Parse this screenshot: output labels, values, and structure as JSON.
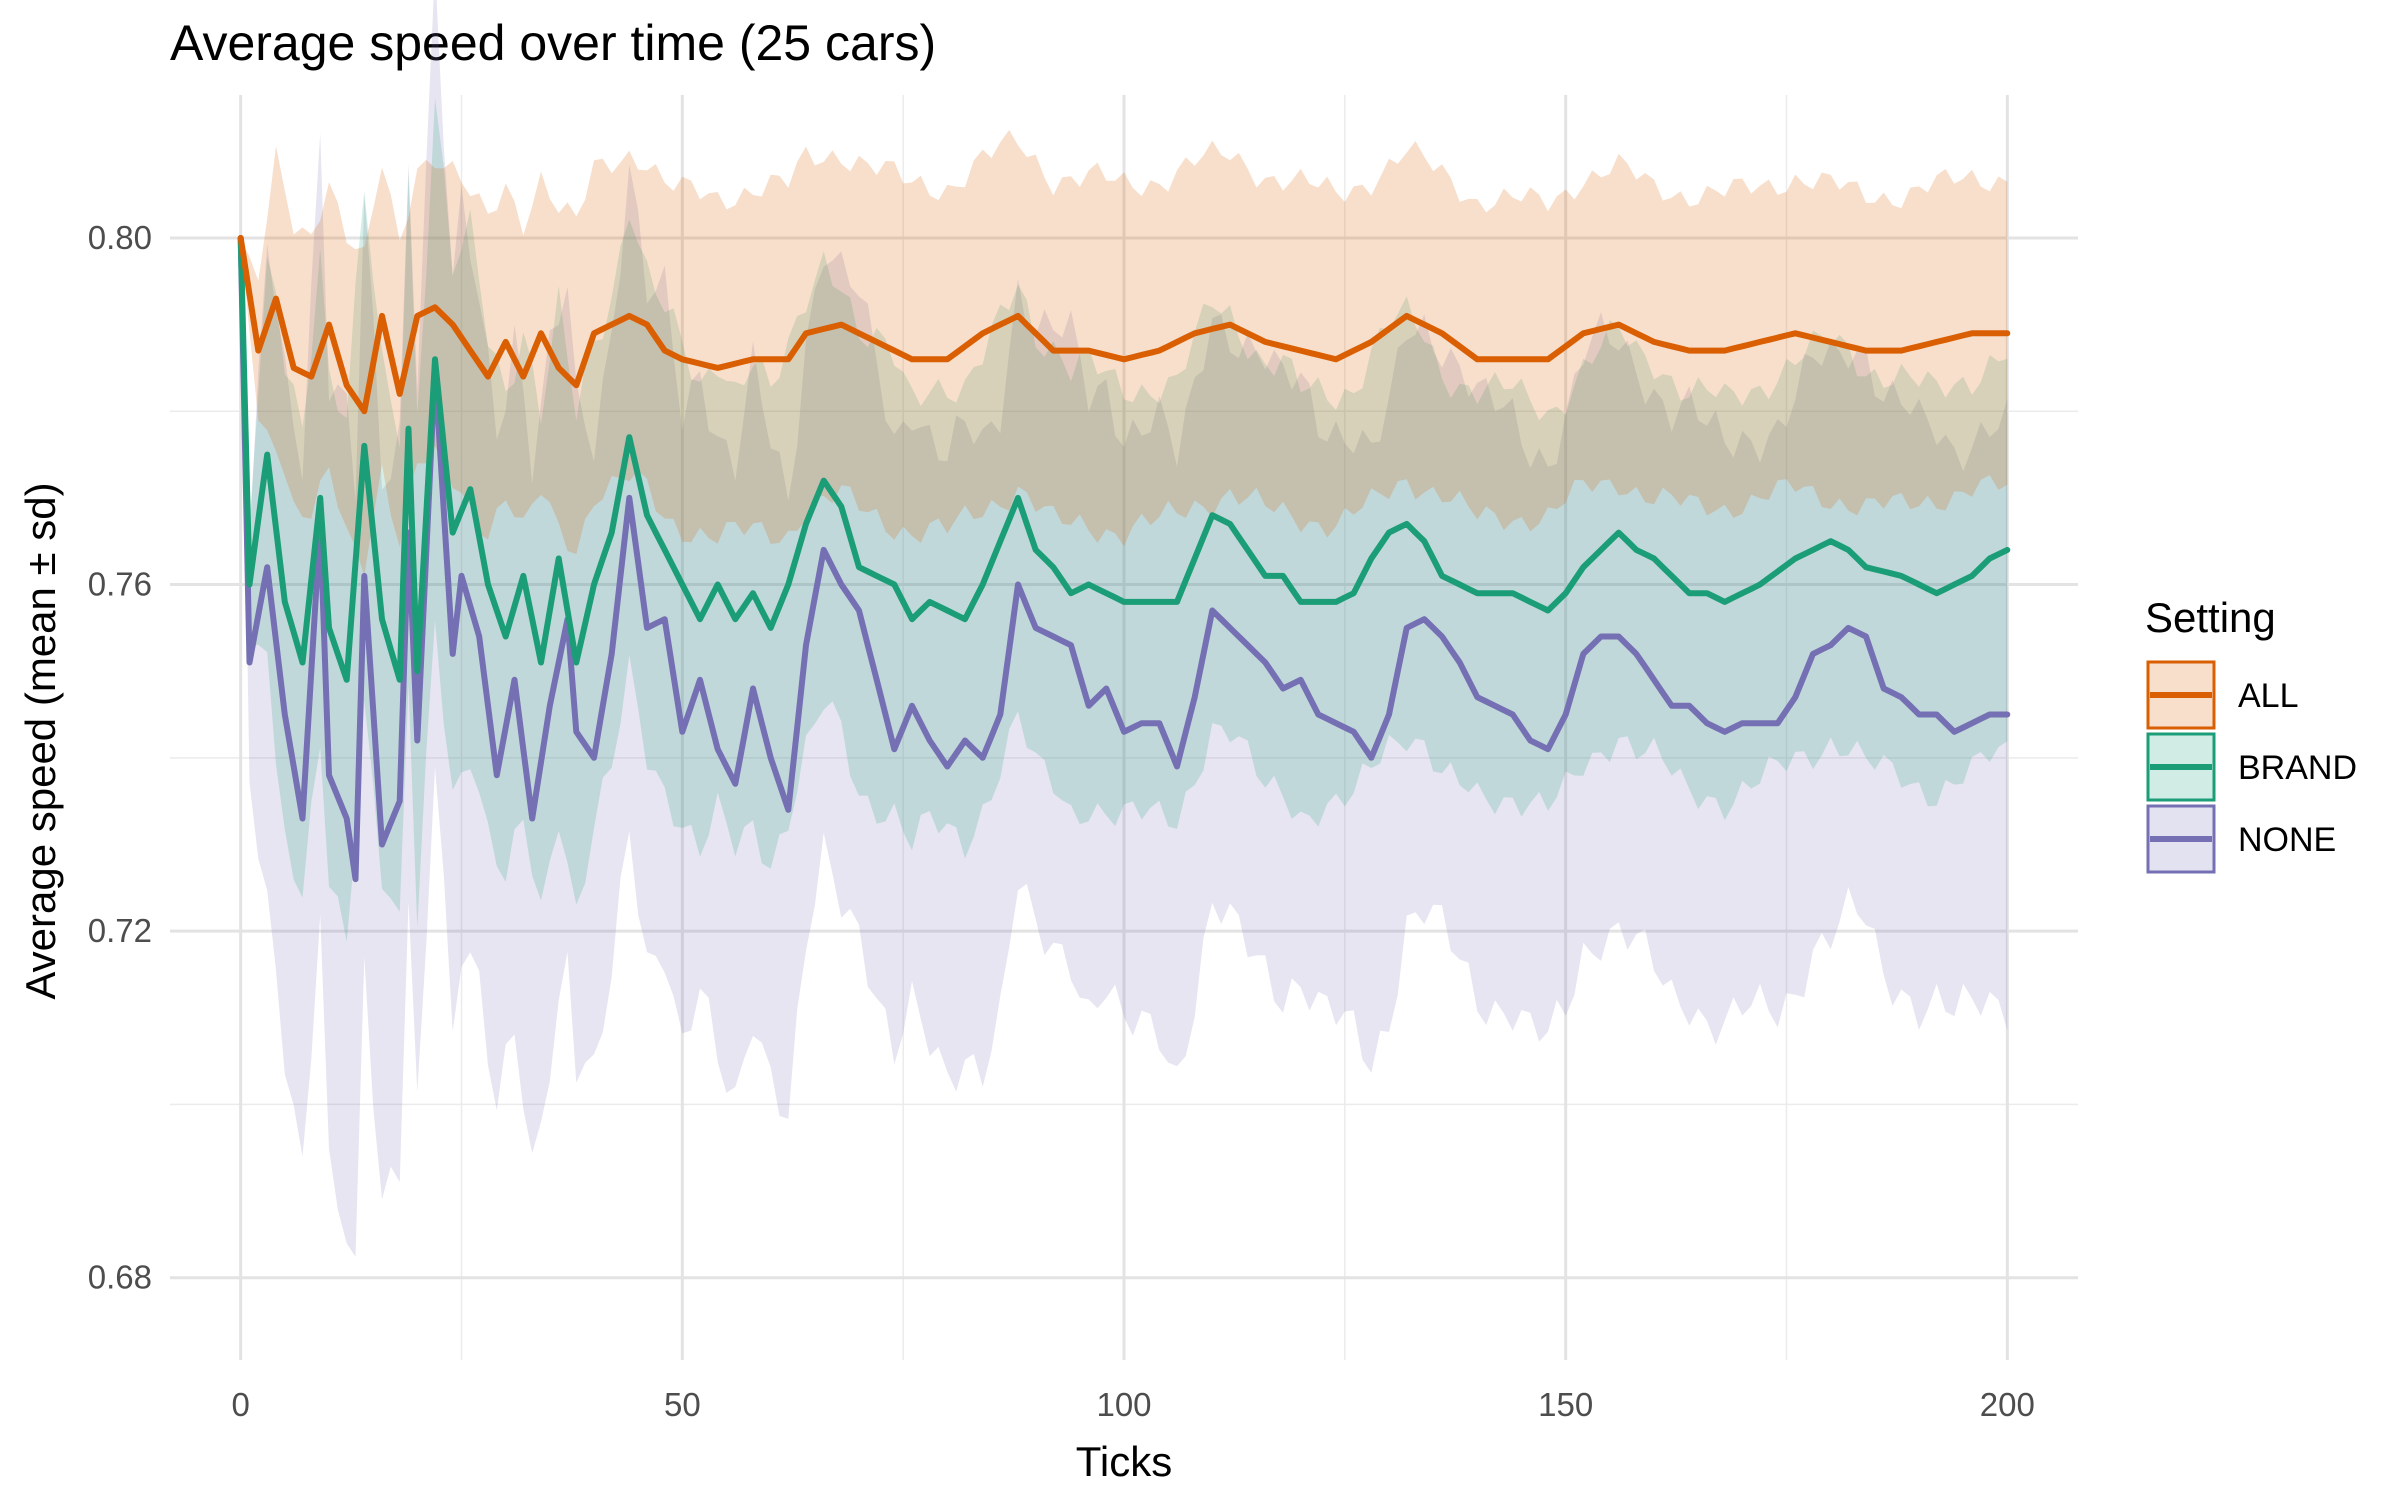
{
  "chart_data": {
    "type": "line",
    "title": "Average speed over time (25 cars)",
    "xlabel": "Ticks",
    "ylabel": "Average speed (mean ± sd)",
    "xlim": [
      -8,
      208
    ],
    "ylim": [
      0.6705,
      0.8165
    ],
    "x_ticks": [
      0,
      50,
      100,
      150,
      200
    ],
    "x_tick_labels": [
      "0",
      "50",
      "100",
      "150",
      "200"
    ],
    "y_ticks": [
      0.68,
      0.72,
      0.76,
      0.8
    ],
    "y_tick_labels": [
      "0.68",
      "0.72",
      "0.76",
      "0.80"
    ],
    "grid": true,
    "legend": {
      "title": "Setting",
      "position": "right"
    },
    "band": "mean ± sd",
    "series": [
      {
        "name": "ALL",
        "color": "#d95f02",
        "key": [
          [
            0,
            0.8
          ],
          [
            2,
            0.787
          ],
          [
            4,
            0.793
          ],
          [
            6,
            0.785
          ],
          [
            8,
            0.784
          ],
          [
            10,
            0.79
          ],
          [
            12,
            0.783
          ],
          [
            14,
            0.78
          ],
          [
            16,
            0.791
          ],
          [
            18,
            0.782
          ],
          [
            20,
            0.791
          ],
          [
            22,
            0.792
          ],
          [
            24,
            0.79
          ],
          [
            26,
            0.787
          ],
          [
            28,
            0.784
          ],
          [
            30,
            0.788
          ],
          [
            32,
            0.784
          ],
          [
            34,
            0.789
          ],
          [
            36,
            0.785
          ],
          [
            38,
            0.783
          ],
          [
            40,
            0.789
          ],
          [
            42,
            0.79
          ],
          [
            44,
            0.791
          ],
          [
            46,
            0.79
          ],
          [
            48,
            0.787
          ],
          [
            50,
            0.786
          ],
          [
            54,
            0.785
          ],
          [
            58,
            0.786
          ],
          [
            62,
            0.786
          ],
          [
            64,
            0.789
          ],
          [
            68,
            0.79
          ],
          [
            72,
            0.788
          ],
          [
            76,
            0.786
          ],
          [
            80,
            0.786
          ],
          [
            84,
            0.789
          ],
          [
            88,
            0.791
          ],
          [
            92,
            0.787
          ],
          [
            96,
            0.787
          ],
          [
            100,
            0.786
          ],
          [
            104,
            0.787
          ],
          [
            108,
            0.789
          ],
          [
            112,
            0.79
          ],
          [
            116,
            0.788
          ],
          [
            120,
            0.787
          ],
          [
            124,
            0.786
          ],
          [
            128,
            0.788
          ],
          [
            132,
            0.791
          ],
          [
            136,
            0.789
          ],
          [
            140,
            0.786
          ],
          [
            144,
            0.786
          ],
          [
            148,
            0.786
          ],
          [
            152,
            0.789
          ],
          [
            156,
            0.79
          ],
          [
            160,
            0.788
          ],
          [
            164,
            0.787
          ],
          [
            168,
            0.787
          ],
          [
            172,
            0.788
          ],
          [
            176,
            0.789
          ],
          [
            180,
            0.788
          ],
          [
            184,
            0.787
          ],
          [
            188,
            0.787
          ],
          [
            192,
            0.788
          ],
          [
            196,
            0.789
          ],
          [
            200,
            0.789
          ]
        ],
        "sd_key": [
          [
            0,
            0.0
          ],
          [
            4,
            0.016
          ],
          [
            10,
            0.017
          ],
          [
            30,
            0.018
          ],
          [
            60,
            0.02
          ],
          [
            100,
            0.02
          ],
          [
            150,
            0.018
          ],
          [
            200,
            0.018
          ]
        ]
      },
      {
        "name": "BRAND",
        "color": "#1b9e77",
        "key": [
          [
            0,
            0.8
          ],
          [
            1,
            0.76
          ],
          [
            3,
            0.775
          ],
          [
            5,
            0.758
          ],
          [
            7,
            0.751
          ],
          [
            9,
            0.77
          ],
          [
            10,
            0.755
          ],
          [
            12,
            0.749
          ],
          [
            14,
            0.776
          ],
          [
            16,
            0.756
          ],
          [
            18,
            0.749
          ],
          [
            19,
            0.778
          ],
          [
            20,
            0.75
          ],
          [
            22,
            0.786
          ],
          [
            24,
            0.766
          ],
          [
            26,
            0.771
          ],
          [
            28,
            0.76
          ],
          [
            30,
            0.754
          ],
          [
            32,
            0.761
          ],
          [
            34,
            0.751
          ],
          [
            36,
            0.763
          ],
          [
            38,
            0.751
          ],
          [
            40,
            0.76
          ],
          [
            42,
            0.766
          ],
          [
            44,
            0.777
          ],
          [
            46,
            0.768
          ],
          [
            48,
            0.764
          ],
          [
            50,
            0.76
          ],
          [
            52,
            0.756
          ],
          [
            54,
            0.76
          ],
          [
            56,
            0.756
          ],
          [
            58,
            0.759
          ],
          [
            60,
            0.755
          ],
          [
            62,
            0.76
          ],
          [
            64,
            0.767
          ],
          [
            66,
            0.772
          ],
          [
            68,
            0.769
          ],
          [
            70,
            0.762
          ],
          [
            72,
            0.761
          ],
          [
            74,
            0.76
          ],
          [
            76,
            0.756
          ],
          [
            78,
            0.758
          ],
          [
            80,
            0.757
          ],
          [
            82,
            0.756
          ],
          [
            84,
            0.76
          ],
          [
            86,
            0.765
          ],
          [
            88,
            0.77
          ],
          [
            90,
            0.764
          ],
          [
            92,
            0.762
          ],
          [
            94,
            0.759
          ],
          [
            96,
            0.76
          ],
          [
            100,
            0.758
          ],
          [
            104,
            0.758
          ],
          [
            106,
            0.758
          ],
          [
            108,
            0.763
          ],
          [
            110,
            0.768
          ],
          [
            112,
            0.767
          ],
          [
            114,
            0.764
          ],
          [
            116,
            0.761
          ],
          [
            118,
            0.761
          ],
          [
            120,
            0.758
          ],
          [
            124,
            0.758
          ],
          [
            126,
            0.759
          ],
          [
            128,
            0.763
          ],
          [
            130,
            0.766
          ],
          [
            132,
            0.767
          ],
          [
            134,
            0.765
          ],
          [
            136,
            0.761
          ],
          [
            138,
            0.76
          ],
          [
            140,
            0.759
          ],
          [
            144,
            0.759
          ],
          [
            148,
            0.757
          ],
          [
            150,
            0.759
          ],
          [
            152,
            0.762
          ],
          [
            154,
            0.764
          ],
          [
            156,
            0.766
          ],
          [
            158,
            0.764
          ],
          [
            160,
            0.763
          ],
          [
            162,
            0.761
          ],
          [
            164,
            0.759
          ],
          [
            166,
            0.759
          ],
          [
            168,
            0.758
          ],
          [
            172,
            0.76
          ],
          [
            176,
            0.763
          ],
          [
            180,
            0.765
          ],
          [
            182,
            0.764
          ],
          [
            184,
            0.762
          ],
          [
            188,
            0.761
          ],
          [
            192,
            0.759
          ],
          [
            196,
            0.761
          ],
          [
            198,
            0.763
          ],
          [
            200,
            0.764
          ]
        ],
        "sd_key": [
          [
            0,
            0.0
          ],
          [
            4,
            0.028
          ],
          [
            20,
            0.03
          ],
          [
            50,
            0.027
          ],
          [
            100,
            0.025
          ],
          [
            150,
            0.023
          ],
          [
            200,
            0.023
          ]
        ]
      },
      {
        "name": "NONE",
        "color": "#7570b3",
        "key": [
          [
            0,
            0.8
          ],
          [
            1,
            0.751
          ],
          [
            3,
            0.762
          ],
          [
            5,
            0.745
          ],
          [
            7,
            0.733
          ],
          [
            9,
            0.767
          ],
          [
            10,
            0.738
          ],
          [
            12,
            0.733
          ],
          [
            13,
            0.726
          ],
          [
            14,
            0.761
          ],
          [
            16,
            0.73
          ],
          [
            18,
            0.735
          ],
          [
            19,
            0.766
          ],
          [
            20,
            0.742
          ],
          [
            22,
            0.785
          ],
          [
            24,
            0.752
          ],
          [
            25,
            0.761
          ],
          [
            27,
            0.754
          ],
          [
            29,
            0.738
          ],
          [
            31,
            0.749
          ],
          [
            33,
            0.733
          ],
          [
            35,
            0.746
          ],
          [
            37,
            0.756
          ],
          [
            38,
            0.743
          ],
          [
            40,
            0.74
          ],
          [
            42,
            0.752
          ],
          [
            44,
            0.77
          ],
          [
            46,
            0.755
          ],
          [
            48,
            0.756
          ],
          [
            50,
            0.743
          ],
          [
            52,
            0.749
          ],
          [
            54,
            0.741
          ],
          [
            56,
            0.737
          ],
          [
            58,
            0.748
          ],
          [
            60,
            0.74
          ],
          [
            62,
            0.734
          ],
          [
            64,
            0.753
          ],
          [
            66,
            0.764
          ],
          [
            68,
            0.76
          ],
          [
            70,
            0.757
          ],
          [
            72,
            0.749
          ],
          [
            74,
            0.741
          ],
          [
            76,
            0.746
          ],
          [
            78,
            0.742
          ],
          [
            80,
            0.739
          ],
          [
            82,
            0.742
          ],
          [
            84,
            0.74
          ],
          [
            86,
            0.745
          ],
          [
            88,
            0.76
          ],
          [
            90,
            0.755
          ],
          [
            92,
            0.754
          ],
          [
            94,
            0.753
          ],
          [
            96,
            0.746
          ],
          [
            98,
            0.748
          ],
          [
            100,
            0.743
          ],
          [
            102,
            0.744
          ],
          [
            104,
            0.744
          ],
          [
            106,
            0.739
          ],
          [
            108,
            0.747
          ],
          [
            110,
            0.757
          ],
          [
            112,
            0.755
          ],
          [
            114,
            0.753
          ],
          [
            116,
            0.751
          ],
          [
            118,
            0.748
          ],
          [
            120,
            0.749
          ],
          [
            122,
            0.745
          ],
          [
            124,
            0.744
          ],
          [
            126,
            0.743
          ],
          [
            128,
            0.74
          ],
          [
            130,
            0.745
          ],
          [
            132,
            0.755
          ],
          [
            134,
            0.756
          ],
          [
            136,
            0.754
          ],
          [
            138,
            0.751
          ],
          [
            140,
            0.747
          ],
          [
            142,
            0.746
          ],
          [
            144,
            0.745
          ],
          [
            146,
            0.742
          ],
          [
            148,
            0.741
          ],
          [
            150,
            0.745
          ],
          [
            152,
            0.752
          ],
          [
            154,
            0.754
          ],
          [
            156,
            0.754
          ],
          [
            158,
            0.752
          ],
          [
            160,
            0.749
          ],
          [
            162,
            0.746
          ],
          [
            164,
            0.746
          ],
          [
            166,
            0.744
          ],
          [
            168,
            0.743
          ],
          [
            170,
            0.744
          ],
          [
            172,
            0.744
          ],
          [
            174,
            0.744
          ],
          [
            176,
            0.747
          ],
          [
            178,
            0.752
          ],
          [
            180,
            0.753
          ],
          [
            182,
            0.755
          ],
          [
            184,
            0.754
          ],
          [
            186,
            0.748
          ],
          [
            188,
            0.747
          ],
          [
            190,
            0.745
          ],
          [
            192,
            0.745
          ],
          [
            194,
            0.743
          ],
          [
            196,
            0.744
          ],
          [
            198,
            0.745
          ],
          [
            200,
            0.745
          ]
        ],
        "sd_key": [
          [
            0,
            0.0
          ],
          [
            3,
            0.04
          ],
          [
            12,
            0.045
          ],
          [
            20,
            0.043
          ],
          [
            40,
            0.038
          ],
          [
            60,
            0.036
          ],
          [
            100,
            0.035
          ],
          [
            150,
            0.034
          ],
          [
            200,
            0.033
          ]
        ]
      }
    ]
  }
}
